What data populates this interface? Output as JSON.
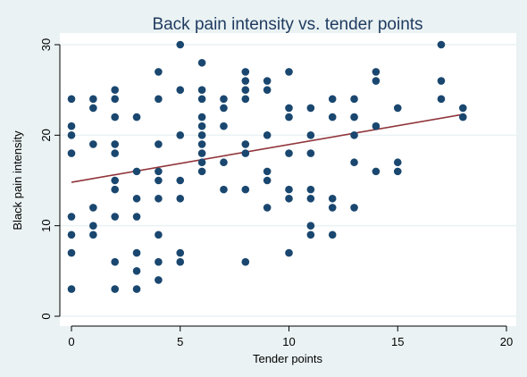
{
  "chart_data": {
    "type": "scatter",
    "title": "Back pain intensity vs. tender points",
    "xlabel": "Tender points",
    "ylabel": "Black pain intensity",
    "xlim": [
      0,
      20
    ],
    "ylim": [
      0,
      30
    ],
    "xticks": [
      0,
      5,
      10,
      15,
      20
    ],
    "yticks": [
      0,
      10,
      20,
      30
    ],
    "grid": true,
    "legend": "none",
    "colors": {
      "background": "#eaf2f3",
      "plot_area": "#ffffff",
      "grid": "#eaf2f3",
      "points": "#1a476f",
      "fit_line": "#90353b",
      "title": "#1e3a5f"
    },
    "points": [
      [
        0,
        24
      ],
      [
        0,
        21
      ],
      [
        0,
        20
      ],
      [
        0,
        18
      ],
      [
        0,
        11
      ],
      [
        0,
        9
      ],
      [
        0,
        7
      ],
      [
        0,
        3
      ],
      [
        1,
        24
      ],
      [
        1,
        23
      ],
      [
        1,
        19
      ],
      [
        1,
        12
      ],
      [
        1,
        10
      ],
      [
        1,
        9
      ],
      [
        2,
        25
      ],
      [
        2,
        24
      ],
      [
        2,
        22
      ],
      [
        2,
        19
      ],
      [
        2,
        18
      ],
      [
        2,
        15
      ],
      [
        2,
        14
      ],
      [
        2,
        11
      ],
      [
        2,
        6
      ],
      [
        2,
        3
      ],
      [
        3,
        22
      ],
      [
        3,
        16
      ],
      [
        3,
        13
      ],
      [
        3,
        11
      ],
      [
        3,
        7
      ],
      [
        3,
        5
      ],
      [
        3,
        3
      ],
      [
        4,
        27
      ],
      [
        4,
        24
      ],
      [
        4,
        19
      ],
      [
        4,
        16
      ],
      [
        4,
        15
      ],
      [
        4,
        13
      ],
      [
        4,
        9
      ],
      [
        4,
        6
      ],
      [
        4,
        4
      ],
      [
        5,
        30
      ],
      [
        5,
        25
      ],
      [
        5,
        20
      ],
      [
        5,
        15
      ],
      [
        5,
        13
      ],
      [
        5,
        7
      ],
      [
        5,
        6
      ],
      [
        6,
        28
      ],
      [
        6,
        25
      ],
      [
        6,
        24
      ],
      [
        6,
        22
      ],
      [
        6,
        21
      ],
      [
        6,
        20
      ],
      [
        6,
        19
      ],
      [
        6,
        18
      ],
      [
        6,
        17
      ],
      [
        6,
        16
      ],
      [
        7,
        24
      ],
      [
        7,
        23
      ],
      [
        7,
        21
      ],
      [
        7,
        17
      ],
      [
        7,
        14
      ],
      [
        8,
        27
      ],
      [
        8,
        26
      ],
      [
        8,
        25
      ],
      [
        8,
        24
      ],
      [
        8,
        19
      ],
      [
        8,
        18
      ],
      [
        8,
        14
      ],
      [
        8,
        6
      ],
      [
        9,
        26
      ],
      [
        9,
        25
      ],
      [
        9,
        20
      ],
      [
        9,
        16
      ],
      [
        9,
        15
      ],
      [
        9,
        12
      ],
      [
        10,
        27
      ],
      [
        10,
        23
      ],
      [
        10,
        22
      ],
      [
        10,
        18
      ],
      [
        10,
        14
      ],
      [
        10,
        13
      ],
      [
        10,
        7
      ],
      [
        11,
        23
      ],
      [
        11,
        20
      ],
      [
        11,
        18
      ],
      [
        11,
        14
      ],
      [
        11,
        13
      ],
      [
        11,
        10
      ],
      [
        11,
        9
      ],
      [
        12,
        24
      ],
      [
        12,
        22
      ],
      [
        12,
        13
      ],
      [
        12,
        12
      ],
      [
        12,
        9
      ],
      [
        13,
        24
      ],
      [
        13,
        22
      ],
      [
        13,
        20
      ],
      [
        13,
        17
      ],
      [
        13,
        12
      ],
      [
        14,
        27
      ],
      [
        14,
        26
      ],
      [
        14,
        21
      ],
      [
        14,
        16
      ],
      [
        15,
        23
      ],
      [
        15,
        17
      ],
      [
        15,
        16
      ],
      [
        17,
        30
      ],
      [
        17,
        26
      ],
      [
        17,
        24
      ],
      [
        18,
        23
      ],
      [
        18,
        22
      ]
    ],
    "fit_line": {
      "x": [
        0,
        18
      ],
      "y": [
        14.8,
        22.3
      ]
    }
  }
}
